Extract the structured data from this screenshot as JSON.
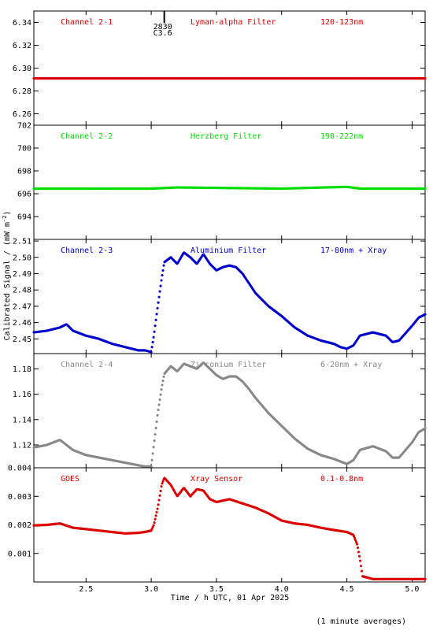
{
  "chart_data": {
    "type": "scatter",
    "ylabel_main": "Calibrated Signal / (mW m",
    "ylabel_sup": "-2",
    "ylabel_close": ")",
    "xlabel": "Time / h UTC, 01 Apr 2025",
    "footnote": "(1 minute averages)",
    "xlim": [
      2.1,
      5.1
    ],
    "xticks": [
      2.5,
      3.0,
      3.5,
      4.0,
      4.5,
      5.0
    ],
    "xtick_labels": [
      "2.5",
      "3.0",
      "3.5",
      "4.0",
      "4.5",
      "5.0"
    ],
    "panels": [
      {
        "channel": "Channel 2-1",
        "filter": "Lyman-alpha Filter",
        "band": "120-123nm",
        "color": "#dd0000",
        "ylim": [
          6.25,
          6.35
        ],
        "yticks": [
          6.26,
          6.28,
          6.3,
          6.32,
          6.34
        ],
        "ytick_labels": [
          "6.26",
          "6.28",
          "6.30",
          "6.32",
          "6.34"
        ],
        "marker": {
          "x": 3.1,
          "label_top": "2830",
          "label_bottom": "C3.6"
        },
        "x": [
          2.1,
          5.1
        ],
        "y": [
          6.291,
          6.291
        ]
      },
      {
        "channel": "Channel 2-2",
        "filter": "Herzberg Filter",
        "band": "190-222nm",
        "color": "#00dd00",
        "ylim": [
          692,
          702
        ],
        "yticks": [
          694,
          696,
          698,
          700,
          702
        ],
        "ytick_labels": [
          "694",
          "696",
          "698",
          "700",
          "702"
        ],
        "x": [
          2.1,
          3.0,
          3.2,
          4.0,
          4.5,
          4.6,
          5.1
        ],
        "y": [
          696.45,
          696.45,
          696.55,
          696.45,
          696.6,
          696.45,
          696.45
        ]
      },
      {
        "channel": "Channel 2-3",
        "filter": "Aluminium Filter",
        "band": "17-80nm + Xray",
        "color": "#0000cc",
        "ylim": [
          2.441,
          2.511
        ],
        "yticks": [
          2.45,
          2.46,
          2.47,
          2.48,
          2.49,
          2.5,
          2.51
        ],
        "ytick_labels": [
          "2.45",
          "2.46",
          "2.47",
          "2.48",
          "2.49",
          "2.50",
          "2.51"
        ],
        "x": [
          2.1,
          2.2,
          2.3,
          2.35,
          2.4,
          2.5,
          2.6,
          2.7,
          2.8,
          2.9,
          2.95,
          3.0,
          3.02,
          3.05,
          3.08,
          3.1,
          3.15,
          3.2,
          3.25,
          3.3,
          3.35,
          3.4,
          3.45,
          3.5,
          3.55,
          3.6,
          3.65,
          3.7,
          3.75,
          3.8,
          3.9,
          4.0,
          4.1,
          4.2,
          4.3,
          4.4,
          4.45,
          4.5,
          4.55,
          4.6,
          4.7,
          4.8,
          4.85,
          4.9,
          5.0,
          5.05,
          5.1
        ],
        "y": [
          2.454,
          2.455,
          2.457,
          2.459,
          2.455,
          2.452,
          2.45,
          2.447,
          2.445,
          2.443,
          2.443,
          2.442,
          2.452,
          2.47,
          2.487,
          2.497,
          2.5,
          2.496,
          2.503,
          2.5,
          2.496,
          2.502,
          2.496,
          2.492,
          2.494,
          2.495,
          2.494,
          2.49,
          2.484,
          2.478,
          2.47,
          2.464,
          2.457,
          2.452,
          2.449,
          2.447,
          2.445,
          2.444,
          2.446,
          2.452,
          2.454,
          2.452,
          2.448,
          2.449,
          2.458,
          2.463,
          2.465
        ]
      },
      {
        "channel": "Channel 2-4",
        "filter": "Zirconium Filter",
        "band": "6-20nm + Xray",
        "color": "#888888",
        "ylim": [
          1.102,
          1.192
        ],
        "yticks": [
          1.12,
          1.14,
          1.16,
          1.18
        ],
        "ytick_labels": [
          "1.12",
          "1.14",
          "1.16",
          "1.18"
        ],
        "x": [
          2.1,
          2.2,
          2.3,
          2.4,
          2.5,
          2.6,
          2.7,
          2.8,
          2.9,
          2.95,
          3.0,
          3.02,
          3.05,
          3.08,
          3.1,
          3.15,
          3.2,
          3.25,
          3.3,
          3.35,
          3.4,
          3.45,
          3.5,
          3.55,
          3.6,
          3.65,
          3.7,
          3.75,
          3.8,
          3.9,
          4.0,
          4.1,
          4.2,
          4.3,
          4.4,
          4.5,
          4.55,
          4.6,
          4.7,
          4.8,
          4.85,
          4.9,
          5.0,
          5.05,
          5.1
        ],
        "y": [
          1.118,
          1.12,
          1.124,
          1.116,
          1.112,
          1.11,
          1.108,
          1.106,
          1.104,
          1.103,
          1.103,
          1.12,
          1.145,
          1.165,
          1.176,
          1.182,
          1.178,
          1.184,
          1.182,
          1.18,
          1.185,
          1.18,
          1.175,
          1.172,
          1.174,
          1.174,
          1.17,
          1.164,
          1.157,
          1.145,
          1.135,
          1.125,
          1.117,
          1.112,
          1.109,
          1.105,
          1.108,
          1.116,
          1.119,
          1.115,
          1.11,
          1.11,
          1.122,
          1.13,
          1.133
        ]
      },
      {
        "channel": "GOES",
        "filter": "Xray Sensor",
        "band": "0.1-0.8nm",
        "color": "#dd0000",
        "ylim": [
          0.0,
          0.004
        ],
        "yticks": [
          0.001,
          0.002,
          0.003,
          0.004
        ],
        "ytick_labels": [
          "0.001",
          "0.002",
          "0.003",
          "0.004"
        ],
        "x": [
          2.1,
          2.2,
          2.3,
          2.4,
          2.5,
          2.6,
          2.7,
          2.8,
          2.9,
          2.95,
          3.0,
          3.02,
          3.05,
          3.08,
          3.1,
          3.15,
          3.2,
          3.25,
          3.3,
          3.35,
          3.4,
          3.45,
          3.5,
          3.55,
          3.6,
          3.7,
          3.8,
          3.9,
          4.0,
          4.1,
          4.2,
          4.3,
          4.4,
          4.5,
          4.55,
          4.58,
          4.6,
          4.62,
          4.7,
          5.1
        ],
        "y": [
          0.00198,
          0.002,
          0.00205,
          0.0019,
          0.00185,
          0.0018,
          0.00175,
          0.0017,
          0.00172,
          0.00175,
          0.0018,
          0.002,
          0.0026,
          0.0034,
          0.00365,
          0.0034,
          0.003,
          0.0033,
          0.003,
          0.00325,
          0.0032,
          0.0029,
          0.0028,
          0.00285,
          0.0029,
          0.00275,
          0.0026,
          0.0024,
          0.00215,
          0.00205,
          0.002,
          0.0019,
          0.00182,
          0.00175,
          0.00165,
          0.0013,
          0.0008,
          0.0002,
          0.0001,
          0.0001
        ]
      }
    ]
  }
}
